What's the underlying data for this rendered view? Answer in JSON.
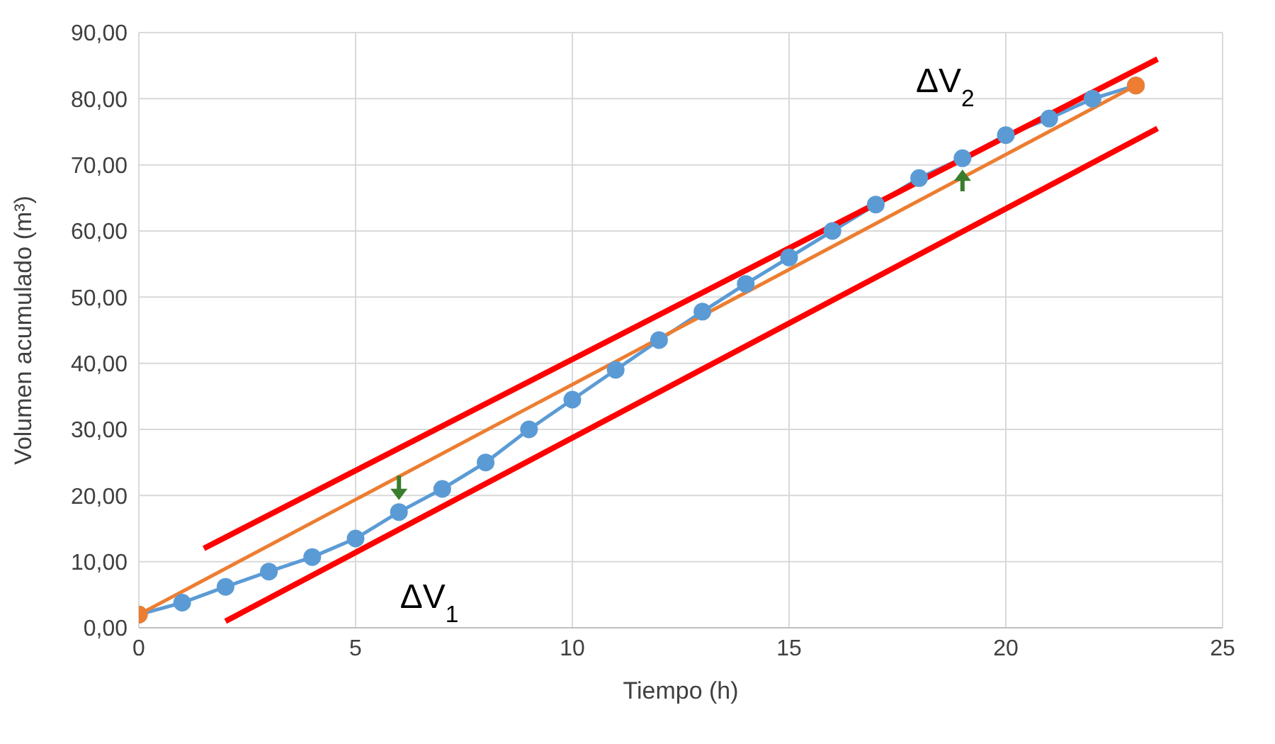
{
  "chart_data": {
    "type": "line",
    "xlabel": "Tiempo (h)",
    "ylabel": "Volumen acumulado (m³)",
    "xlim": [
      0,
      25
    ],
    "xticks": [
      0,
      5,
      10,
      15,
      20,
      25
    ],
    "ylim": [
      0,
      90
    ],
    "yticks": [
      {
        "value": 0,
        "label": "0,00"
      },
      {
        "value": 10,
        "label": "10,00"
      },
      {
        "value": 20,
        "label": "20,00"
      },
      {
        "value": 30,
        "label": "30,00"
      },
      {
        "value": 40,
        "label": "40,00"
      },
      {
        "value": 50,
        "label": "50,00"
      },
      {
        "value": 60,
        "label": "60,00"
      },
      {
        "value": 70,
        "label": "70,00"
      },
      {
        "value": 80,
        "label": "80,00"
      },
      {
        "value": 90,
        "label": "90,00"
      }
    ],
    "grid": true,
    "series": [
      {
        "color": "#5b9bd5",
        "marker": "circle",
        "x": [
          0,
          1,
          2,
          3,
          4,
          5,
          6,
          7,
          8,
          9,
          10,
          11,
          12,
          13,
          14,
          15,
          16,
          17,
          18,
          19,
          20,
          21,
          22,
          23
        ],
        "values": [
          2,
          3.8,
          6.2,
          8.5,
          10.7,
          13.5,
          17.5,
          21,
          25,
          30,
          34.5,
          39,
          43.5,
          47.8,
          52,
          56,
          60,
          64,
          68,
          71,
          74.5,
          77,
          80,
          82
        ]
      },
      {
        "color": "#ed7d31",
        "marker": "circle",
        "x": [
          0,
          23
        ],
        "values": [
          2,
          82
        ]
      },
      {
        "color": "#ff0000",
        "marker": "none",
        "x": [
          1.5,
          23.5
        ],
        "values": [
          12,
          86
        ]
      },
      {
        "color": "#ff0000",
        "marker": "none",
        "x": [
          2,
          23.5
        ],
        "values": [
          1,
          75.5
        ]
      }
    ],
    "annotations": [
      "ΔV$_{1}$",
      "ΔV$_{2}$"
    ]
  }
}
